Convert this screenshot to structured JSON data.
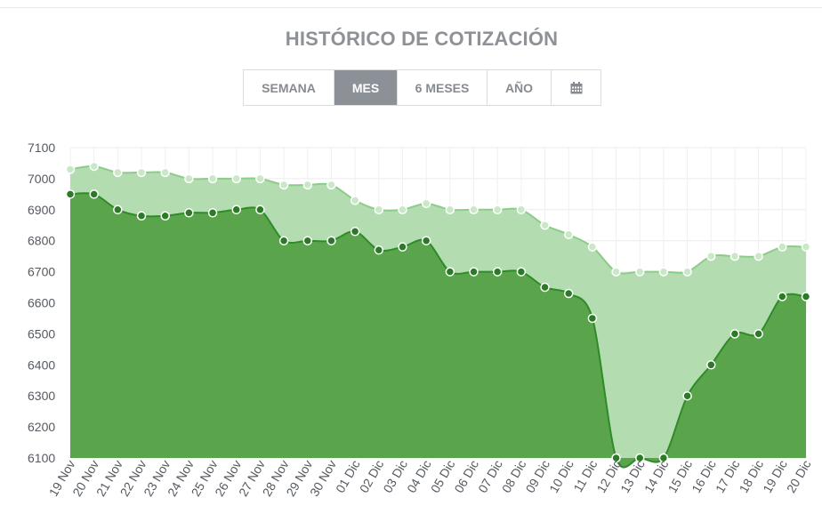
{
  "header": {
    "title": "HISTÓRICO DE COTIZACIÓN"
  },
  "range_selector": {
    "buttons": [
      {
        "label": "SEMANA",
        "active": false
      },
      {
        "label": "MES",
        "active": true
      },
      {
        "label": "6 MESES",
        "active": false
      },
      {
        "label": "AÑO",
        "active": false
      },
      {
        "label": "",
        "icon": "calendar-icon",
        "active": false
      }
    ]
  },
  "colors": {
    "series_dark_fill": "#5aa54c",
    "series_dark_line": "#2f8a2a",
    "series_light_fill": "#b4dcb1",
    "series_light_line": "#8ccc89",
    "active_button_bg": "#8c9097"
  },
  "chart_data": {
    "type": "area",
    "categories": [
      "19 Nov",
      "20 Nov",
      "21 Nov",
      "22 Nov",
      "23 Nov",
      "24 Nov",
      "25 Nov",
      "26 Nov",
      "27 Nov",
      "28 Nov",
      "29 Nov",
      "30 Nov",
      "01 Dic",
      "02 Dic",
      "03 Dic",
      "04 Dic",
      "05 Dic",
      "06 Dic",
      "07 Dic",
      "08 Dic",
      "09 Dic",
      "10 Dic",
      "11 Dic",
      "12 Dic",
      "13 Dic",
      "14 Dic",
      "15 Dic",
      "16 Dic",
      "17 Dic",
      "18 Dic",
      "19 Dic",
      "20 Dic"
    ],
    "series": [
      {
        "values": [
          7030,
          7040,
          7020,
          7020,
          7020,
          7000,
          7000,
          7000,
          7000,
          6980,
          6980,
          6980,
          6930,
          6900,
          6900,
          6920,
          6900,
          6900,
          6900,
          6900,
          6850,
          6820,
          6780,
          6700,
          6700,
          6700,
          6700,
          6750,
          6750,
          6750,
          6780,
          6780
        ]
      },
      {
        "values": [
          6950,
          6950,
          6900,
          6880,
          6880,
          6890,
          6890,
          6900,
          6900,
          6800,
          6800,
          6800,
          6830,
          6770,
          6780,
          6800,
          6700,
          6700,
          6700,
          6700,
          6650,
          6630,
          6550,
          6100,
          6100,
          6100,
          6300,
          6400,
          6500,
          6500,
          6620,
          6620
        ]
      }
    ],
    "yticks": [
      6100,
      6200,
      6300,
      6400,
      6500,
      6600,
      6700,
      6800,
      6900,
      7000,
      7100
    ],
    "ytick_labels": [
      "6100",
      "6200",
      "6300",
      "6400",
      "6500",
      "6600",
      "6700",
      "6800",
      "6900",
      "7000",
      "7100"
    ],
    "ylim": [
      6100,
      7100
    ],
    "grid": true
  }
}
